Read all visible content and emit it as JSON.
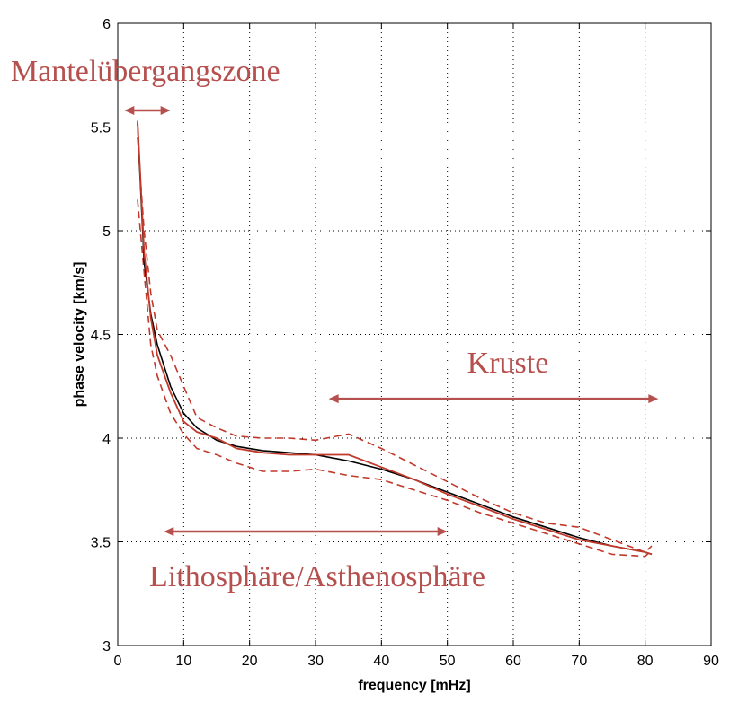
{
  "chart_data": {
    "type": "line",
    "xlabel": "frequency [mHz]",
    "ylabel": "phase velocity [km/s]",
    "xlim": [
      0,
      90
    ],
    "ylim": [
      3,
      6
    ],
    "xticks": [
      "0",
      "10",
      "20",
      "30",
      "40",
      "50",
      "60",
      "70",
      "80",
      "90"
    ],
    "yticks": [
      "3",
      "3.5",
      "4",
      "4.5",
      "5",
      "5.5",
      "6"
    ],
    "grid": true,
    "colors": {
      "reference": "#000000",
      "measured": "#c0392b",
      "bounds": "#c0392b",
      "annotation": "#b5504f"
    },
    "series": [
      {
        "style": "solid-black",
        "x": [
          3,
          4,
          5,
          6,
          8,
          10,
          12,
          15,
          18,
          22,
          26,
          30,
          35,
          40,
          45,
          50,
          55,
          60,
          65,
          70,
          75,
          80,
          81
        ],
        "y": [
          5.52,
          4.85,
          4.6,
          4.45,
          4.25,
          4.12,
          4.05,
          3.99,
          3.96,
          3.94,
          3.93,
          3.92,
          3.89,
          3.85,
          3.8,
          3.74,
          3.68,
          3.62,
          3.57,
          3.52,
          3.48,
          3.45,
          3.44
        ]
      },
      {
        "style": "solid-red",
        "x": [
          3,
          4,
          5,
          6,
          8,
          10,
          12,
          15,
          18,
          22,
          26,
          30,
          35,
          40,
          45,
          50,
          55,
          60,
          65,
          70,
          75,
          80,
          81
        ],
        "y": [
          5.53,
          4.9,
          4.58,
          4.4,
          4.22,
          4.08,
          4.03,
          4.0,
          3.95,
          3.93,
          3.92,
          3.92,
          3.92,
          3.86,
          3.8,
          3.73,
          3.67,
          3.61,
          3.56,
          3.51,
          3.48,
          3.45,
          3.44
        ]
      },
      {
        "style": "dashed-red-upper",
        "x": [
          3,
          4,
          5,
          6,
          8,
          10,
          12,
          15,
          18,
          22,
          26,
          30,
          35,
          40,
          45,
          50,
          55,
          60,
          65,
          70,
          75,
          80,
          81
        ],
        "y": [
          5.45,
          5.0,
          4.7,
          4.52,
          4.4,
          4.25,
          4.1,
          4.05,
          4.01,
          4.0,
          4.0,
          3.99,
          4.02,
          3.95,
          3.87,
          3.79,
          3.71,
          3.64,
          3.59,
          3.57,
          3.51,
          3.45,
          3.48
        ]
      },
      {
        "style": "dashed-red-lower",
        "x": [
          3,
          4,
          5,
          6,
          8,
          10,
          12,
          15,
          18,
          22,
          26,
          30,
          35,
          40,
          45,
          50,
          55,
          60,
          65,
          70,
          75,
          80,
          81
        ],
        "y": [
          5.15,
          4.8,
          4.45,
          4.3,
          4.12,
          4.02,
          3.95,
          3.92,
          3.88,
          3.84,
          3.84,
          3.85,
          3.82,
          3.8,
          3.75,
          3.7,
          3.64,
          3.59,
          3.54,
          3.49,
          3.44,
          3.43,
          3.46
        ]
      }
    ],
    "annotations": [
      {
        "text": "Mantelübergangszone",
        "arrow_from_x": 1,
        "arrow_to_x": 8,
        "arrow_y": 5.58
      },
      {
        "text": "Kruste",
        "arrow_from_x": 32,
        "arrow_to_x": 82,
        "arrow_y": 4.19
      },
      {
        "text": "Lithosphäre/Asthenosphäre",
        "arrow_from_x": 7,
        "arrow_to_x": 50,
        "arrow_y": 3.55
      }
    ]
  }
}
